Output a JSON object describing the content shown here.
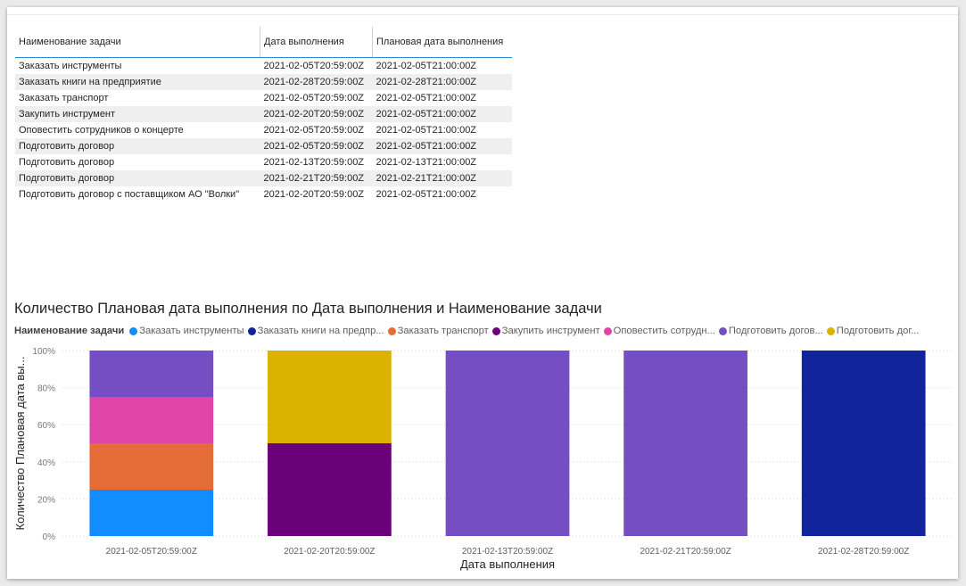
{
  "table": {
    "headers": [
      "Наименование задачи",
      "Дата выполнения",
      "Плановая дата выполнения"
    ],
    "rows": [
      [
        "Заказать инструменты",
        "2021-02-05T20:59:00Z",
        "2021-02-05T21:00:00Z"
      ],
      [
        "Заказать книги на предприятие",
        "2021-02-28T20:59:00Z",
        "2021-02-28T21:00:00Z"
      ],
      [
        "Заказать транспорт",
        "2021-02-05T20:59:00Z",
        "2021-02-05T21:00:00Z"
      ],
      [
        "Закупить инструмент",
        "2021-02-20T20:59:00Z",
        "2021-02-05T21:00:00Z"
      ],
      [
        "Оповестить сотрудников о концерте",
        "2021-02-05T20:59:00Z",
        "2021-02-05T21:00:00Z"
      ],
      [
        "Подготовить договор",
        "2021-02-05T20:59:00Z",
        "2021-02-05T21:00:00Z"
      ],
      [
        "Подготовить договор",
        "2021-02-13T20:59:00Z",
        "2021-02-13T21:00:00Z"
      ],
      [
        "Подготовить договор",
        "2021-02-21T20:59:00Z",
        "2021-02-21T21:00:00Z"
      ],
      [
        "Подготовить договор с поставщиком АО \"Волки\"",
        "2021-02-20T20:59:00Z",
        "2021-02-05T21:00:00Z"
      ]
    ]
  },
  "legend": {
    "title": "Наименование задачи",
    "items": [
      {
        "label": "Заказать инструменты",
        "color": "#118dff"
      },
      {
        "label": "Заказать книги на предпр...",
        "color": "#12239e"
      },
      {
        "label": "Заказать транспорт",
        "color": "#e66c37"
      },
      {
        "label": "Закупить инструмент",
        "color": "#6b007b"
      },
      {
        "label": "Оповестить сотрудн...",
        "color": "#e044a7"
      },
      {
        "label": "Подготовить догов...",
        "color": "#744ec2"
      },
      {
        "label": "Подготовить дог...",
        "color": "#d9b300"
      }
    ]
  },
  "chart_data": {
    "type": "bar",
    "stacked": "100%",
    "title": "Количество Плановая дата выполнения по Дата выполнения и Наименование задачи",
    "xlabel": "Дата выполнения",
    "ylabel": "Количество Плановая дата вы...",
    "ylim": [
      0,
      100
    ],
    "yticks": [
      "0%",
      "20%",
      "40%",
      "60%",
      "80%",
      "100%"
    ],
    "categories": [
      "2021-02-05T20:59:00Z",
      "2021-02-20T20:59:00Z",
      "2021-02-13T20:59:00Z",
      "2021-02-21T20:59:00Z",
      "2021-02-28T20:59:00Z"
    ],
    "series": [
      {
        "name": "Заказать инструменты",
        "color": "#118dff",
        "values": [
          25,
          0,
          0,
          0,
          0
        ]
      },
      {
        "name": "Заказать книги на предприятие",
        "color": "#12239e",
        "values": [
          0,
          0,
          0,
          0,
          100
        ]
      },
      {
        "name": "Заказать транспорт",
        "color": "#e66c37",
        "values": [
          25,
          0,
          0,
          0,
          0
        ]
      },
      {
        "name": "Закупить инструмент",
        "color": "#6b007b",
        "values": [
          0,
          50,
          0,
          0,
          0
        ]
      },
      {
        "name": "Оповестить сотрудников о концерте",
        "color": "#e044a7",
        "values": [
          25,
          0,
          0,
          0,
          0
        ]
      },
      {
        "name": "Подготовить договор",
        "color": "#744ec2",
        "values": [
          25,
          0,
          100,
          100,
          0
        ]
      },
      {
        "name": "Подготовить договор с поставщиком АО \"Волки\"",
        "color": "#d9b300",
        "values": [
          0,
          50,
          0,
          0,
          0
        ]
      }
    ]
  }
}
